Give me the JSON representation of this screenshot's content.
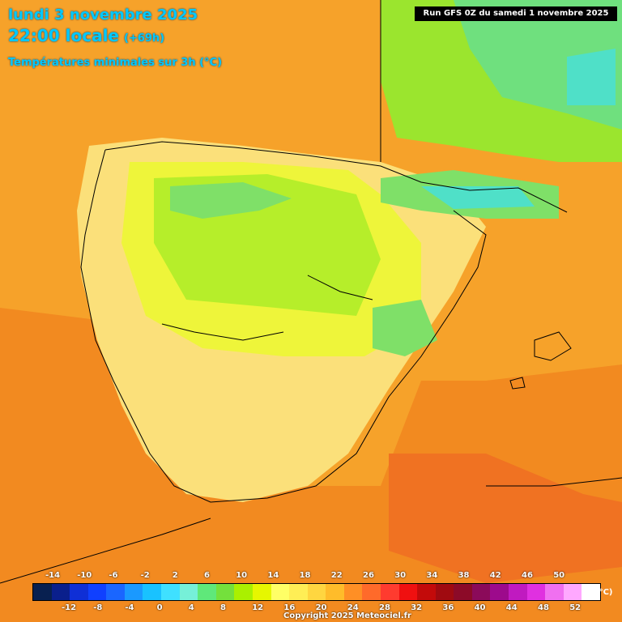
{
  "title": {
    "date": "lundi 3 novembre 2025",
    "time": "22:00 locale",
    "lead": "(+69h)",
    "subtitle": "Températures minimales sur 3h (°C)"
  },
  "run": "Run GFS 0Z du samedi 1 novembre 2025",
  "legend": {
    "unit": "(°C)",
    "top_labels": [
      "-14",
      "-10",
      "-6",
      "-2",
      "2",
      "6",
      "10",
      "14",
      "18",
      "22",
      "26",
      "30",
      "34",
      "38",
      "42",
      "46",
      "50"
    ],
    "bottom_labels": [
      "-12",
      "-8",
      "-4",
      "0",
      "4",
      "8",
      "12",
      "16",
      "20",
      "24",
      "28",
      "32",
      "36",
      "40",
      "44",
      "48",
      "52"
    ],
    "colors": [
      "#082050",
      "#0a1f8c",
      "#0f2fd6",
      "#1040ff",
      "#1a66ff",
      "#1a99ff",
      "#19c2ff",
      "#3fe0ff",
      "#76f0d8",
      "#5fe87a",
      "#74e03c",
      "#aaf000",
      "#e6f700",
      "#ffff66",
      "#ffee55",
      "#ffd640",
      "#ffbc2a",
      "#ff8f25",
      "#ff6a2a",
      "#ff3b2f",
      "#f01010",
      "#c30a0a",
      "#a00a10",
      "#8c0a28",
      "#8b0a5a",
      "#9d0a8c",
      "#c01ac0",
      "#e030e0",
      "#f070f0",
      "#ffa8ff",
      "#ffffff"
    ]
  },
  "copyright": "Copyright 2025 Meteociel.fr"
}
